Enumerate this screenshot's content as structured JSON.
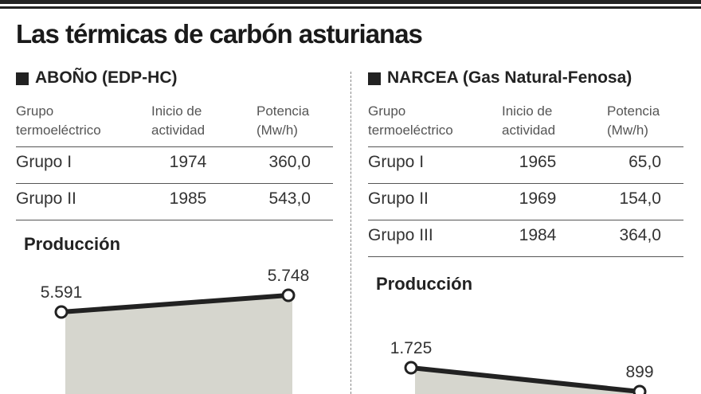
{
  "title": "Las térmicas de carbón asturianas",
  "panels": [
    {
      "heading": "ABOÑO (EDP-HC)",
      "table": {
        "header": [
          "Grupo termoeléctrico",
          "Inicio de actividad",
          "Potencia (Mw/h)"
        ],
        "rows": [
          [
            "Grupo I",
            "1974",
            "360,0"
          ],
          [
            "Grupo II",
            "1985",
            "543,0"
          ]
        ]
      }
    },
    {
      "heading": "NARCEA (Gas Natural-Fenosa)",
      "table": {
        "header": [
          "Grupo termoeléctrico",
          "Inicio de actividad",
          "Potencia (Mw/h)"
        ],
        "rows": [
          [
            "Grupo I",
            "1965",
            "65,0"
          ],
          [
            "Grupo II",
            "1969",
            "154,0"
          ],
          [
            "Grupo III",
            "1984",
            "364,0"
          ]
        ]
      }
    }
  ],
  "chart_data": [
    {
      "type": "area",
      "title": "Producción",
      "categories": [
        null,
        null
      ],
      "values": [
        5591,
        5748
      ],
      "value_labels": [
        "5.591",
        "5.748"
      ],
      "color": "#d6d6ce",
      "line_color": "#222222"
    },
    {
      "type": "area",
      "title": "Producción",
      "categories": [
        null,
        null
      ],
      "values": [
        1725,
        899
      ],
      "value_labels": [
        "1.725",
        "899"
      ],
      "color": "#d6d6ce",
      "line_color": "#222222"
    }
  ]
}
